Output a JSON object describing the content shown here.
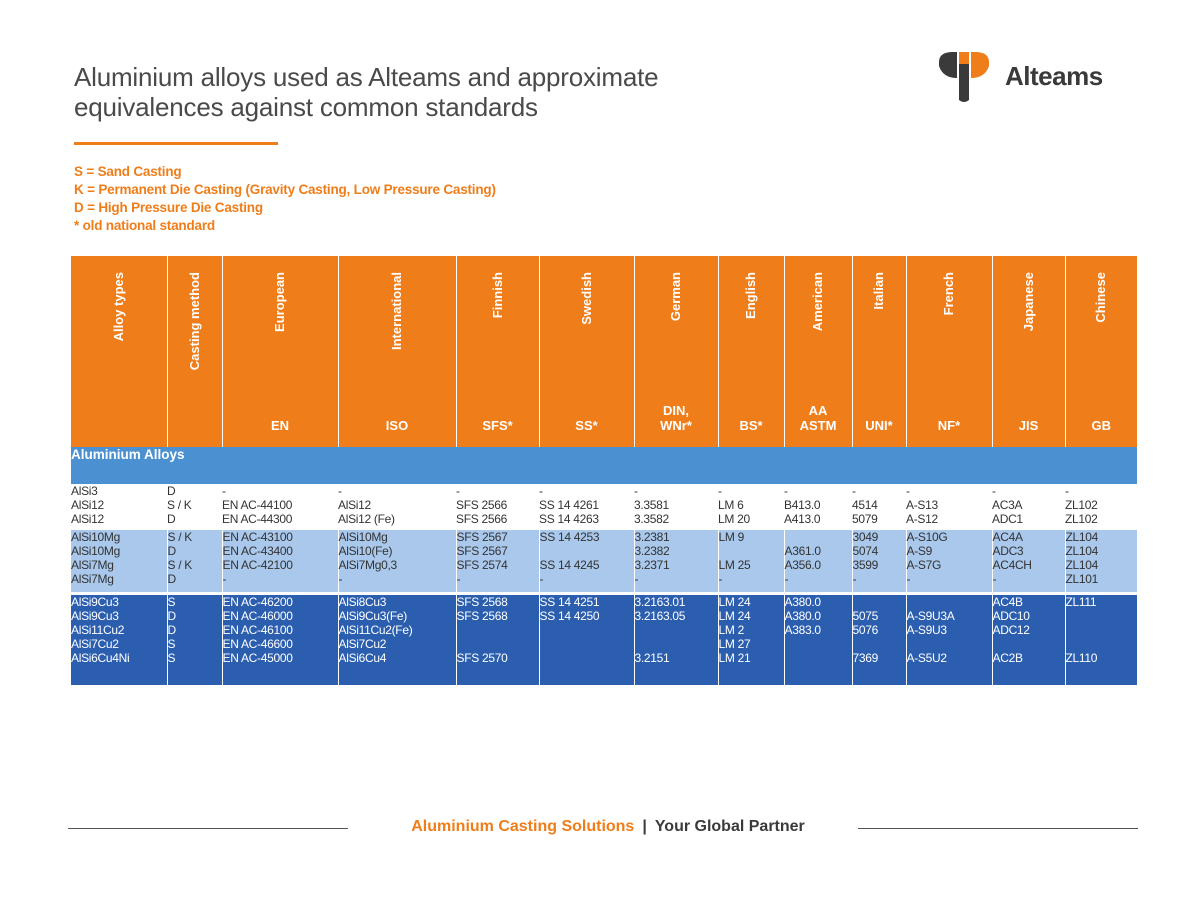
{
  "title": {
    "line1": "Aluminium alloys used as Alteams and approximate",
    "line2": "equivalences against common standards"
  },
  "logo": {
    "text": "Alteams",
    "icon": "alteams-logo-icon",
    "colors": {
      "orange": "#ef7d1a",
      "dark": "#3a3a3a"
    }
  },
  "legend": [
    "S = Sand Casting",
    "K = Permanent Die Casting (Gravity Casting, Low Pressure Casting)",
    "D = High Pressure Die Casting",
    "* old national standard"
  ],
  "table": {
    "columns": [
      {
        "label": "Alloy types",
        "code": ""
      },
      {
        "label": "Casting method",
        "code": ""
      },
      {
        "label": "European",
        "code": "EN"
      },
      {
        "label": "International",
        "code": "ISO"
      },
      {
        "label": "Finnish",
        "code": "SFS*"
      },
      {
        "label": "Swedish",
        "code": "SS*"
      },
      {
        "label": "German",
        "code": "DIN, WNr*"
      },
      {
        "label": "English",
        "code": "BS*"
      },
      {
        "label": "American",
        "code": "AA ASTM"
      },
      {
        "label": "Italian",
        "code": "UNI*"
      },
      {
        "label": "French",
        "code": "NF*"
      },
      {
        "label": "Japanese",
        "code": "JIS"
      },
      {
        "label": "Chinese",
        "code": "GB"
      }
    ],
    "section_label": "Aluminium Alloys",
    "groups": [
      {
        "band": "white",
        "cells": [
          [
            "AlSi3\nAlSi12\nAlSi12"
          ],
          [
            "D\nS / K\nD"
          ],
          [
            "-\nEN AC-44100\nEN AC-44300"
          ],
          [
            "-\nAlSi12\nAlSi12 (Fe)"
          ],
          [
            "-\nSFS 2566\nSFS 2566"
          ],
          [
            "-\nSS 14 4261\nSS 14 4263"
          ],
          [
            "-\n3.3581\n3.3582"
          ],
          [
            "-\nLM 6\nLM 20"
          ],
          [
            "-\nB413.0\nA413.0"
          ],
          [
            "-\n4514\n5079"
          ],
          [
            "-\nA-S13\nA-S12"
          ],
          [
            "-\nAC3A\nADC1"
          ],
          [
            "-\nZL102\nZL102"
          ]
        ]
      },
      {
        "band": "light",
        "cells": [
          [
            "AlSi10Mg\nAlSi10Mg\nAlSi7Mg\nAlSi7Mg"
          ],
          [
            "S / K\nD\nS / K\nD"
          ],
          [
            "EN AC-43100\nEN AC-43400\nEN AC-42100\n-"
          ],
          [
            "AlSi10Mg\nAlSi10(Fe)\nAlSi7Mg0,3\n-"
          ],
          [
            "SFS 2567\nSFS 2567\nSFS 2574\n-"
          ],
          [
            "SS 14 4253\n\nSS 14 4245\n-"
          ],
          [
            "3.2381\n3.2382\n3.2371\n-"
          ],
          [
            "LM 9\n\nLM 25\n-"
          ],
          [
            "\nA361.0\nA356.0\n-"
          ],
          [
            "3049\n5074\n3599\n-"
          ],
          [
            "A-S10G\nA-S9\nA-S7G\n-"
          ],
          [
            "AC4A\nADC3\nAC4CH\n-"
          ],
          [
            "ZL104\nZL104\nZL104\nZL101"
          ]
        ]
      },
      {
        "band": "dark",
        "cells": [
          [
            "AlSi9Cu3\nAlSi9Cu3\nAlSi11Cu2\nAlSi7Cu2\nAlSi6Cu4Ni"
          ],
          [
            "S\nD\nD\nS\nS"
          ],
          [
            "EN AC-46200\nEN AC-46000\nEN AC-46100\nEN AC-46600\nEN AC-45000"
          ],
          [
            "AlSi8Cu3\nAlSi9Cu3(Fe)\nAlSi11Cu2(Fe)\nAlSi7Cu2\nAlSi6Cu4"
          ],
          [
            "SFS 2568\nSFS 2568\n\n\nSFS 2570"
          ],
          [
            "SS 14 4251\nSS 14 4250\n\n\n"
          ],
          [
            "3.2163.01\n3.2163.05\n\n\n3.2151"
          ],
          [
            "LM 24\nLM 24\nLM 2\nLM 27\nLM 21"
          ],
          [
            "A380.0\nA380.0\nA383.0\n\n"
          ],
          [
            "\n5075\n5076\n\n7369"
          ],
          [
            "\nA-S9U3A\nA-S9U3\n\nA-S5U2"
          ],
          [
            "AC4B\nADC10\nADC12\n\nAC2B"
          ],
          [
            "ZL111\n\n\n\nZL110"
          ]
        ]
      }
    ]
  },
  "footer": {
    "left": "Aluminium Casting Solutions",
    "separator": "|",
    "right": "Your Global Partner"
  }
}
